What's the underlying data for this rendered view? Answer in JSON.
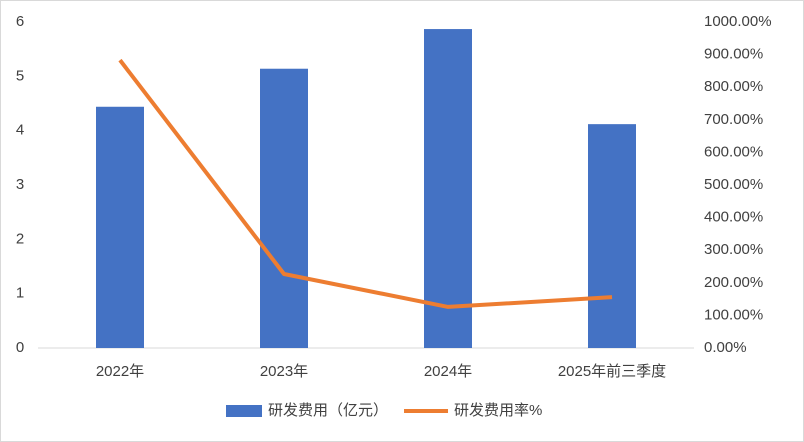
{
  "chart_data": {
    "type": "bar",
    "categories": [
      "2022年",
      "2023年",
      "2024年",
      "2025年前三季度"
    ],
    "series": [
      {
        "name": "研发费用（亿元）",
        "color": "#4472c4",
        "values": [
          4.44,
          5.14,
          5.87,
          4.12
        ]
      },
      {
        "name": "研发费用率%",
        "color": "#ed7d31",
        "type": "line",
        "axis": "y2",
        "values": [
          883,
          227,
          126,
          156
        ]
      }
    ],
    "ylim": [
      0,
      6
    ],
    "yticks": [
      0,
      1,
      2,
      3,
      4,
      5,
      6
    ],
    "y2lim": [
      0,
      1000
    ],
    "y2ticks": [
      {
        "value": 0,
        "label": "0.00%"
      },
      {
        "value": 100,
        "label": "100.00%"
      },
      {
        "value": 200,
        "label": "200.00%"
      },
      {
        "value": 300,
        "label": "300.00%"
      },
      {
        "value": 400,
        "label": "400.00%"
      },
      {
        "value": 500,
        "label": "500.00%"
      },
      {
        "value": 600,
        "label": "600.00%"
      },
      {
        "value": 700,
        "label": "700.00%"
      },
      {
        "value": 800,
        "label": "800.00%"
      },
      {
        "value": 900,
        "label": "900.00%"
      },
      {
        "value": 1000,
        "label": "1000.00%"
      }
    ],
    "legend": "bottom"
  }
}
